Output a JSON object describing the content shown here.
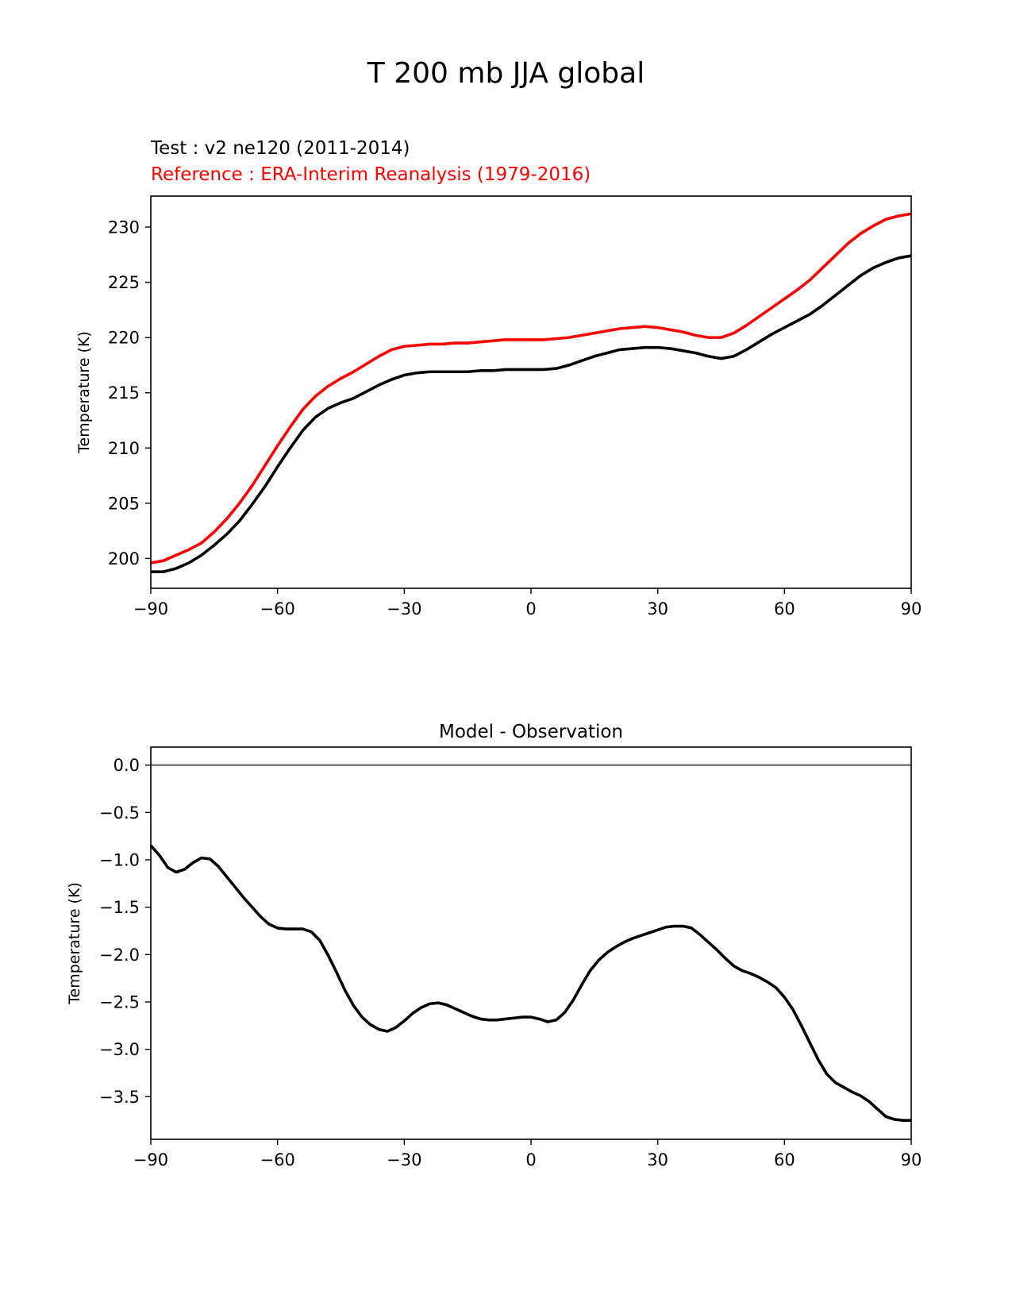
{
  "figure": {
    "title": "T 200 mb JJA global",
    "test_label": "Test : v2 ne120 (2011-2014)",
    "reference_label": "Reference : ERA-Interim Reanalysis (1979-2016)"
  },
  "colors": {
    "test": "#000000",
    "reference": "#ff0000",
    "zero_line": "#808080"
  },
  "chart_data": [
    {
      "type": "line",
      "title": "",
      "xlabel": "",
      "ylabel": "Temperature (K)",
      "xlim": [
        -90,
        90
      ],
      "ylim": [
        197.3,
        232.8
      ],
      "xticks": [
        -90,
        -60,
        -30,
        0,
        30,
        60,
        90
      ],
      "xtick_labels": [
        "−90",
        "−60",
        "−30",
        "0",
        "30",
        "60",
        "90"
      ],
      "yticks": [
        200,
        205,
        210,
        215,
        220,
        225,
        230
      ],
      "ytick_labels": [
        "200",
        "205",
        "210",
        "215",
        "220",
        "225",
        "230"
      ],
      "series": [
        {
          "name": "Test : v2 ne120 (2011-2014)",
          "color": "#000000",
          "x": [
            -90,
            -87,
            -84,
            -81,
            -78,
            -75,
            -72,
            -69,
            -66,
            -63,
            -60,
            -57,
            -54,
            -51,
            -48,
            -45,
            -42,
            -39,
            -36,
            -33,
            -30,
            -27,
            -24,
            -21,
            -18,
            -15,
            -12,
            -9,
            -6,
            -3,
            0,
            3,
            6,
            9,
            12,
            15,
            18,
            21,
            24,
            27,
            30,
            33,
            36,
            39,
            42,
            45,
            48,
            51,
            54,
            57,
            60,
            63,
            66,
            69,
            72,
            75,
            78,
            81,
            84,
            87,
            90
          ],
          "values": [
            198.8,
            198.8,
            199.1,
            199.6,
            200.3,
            201.2,
            202.2,
            203.4,
            204.9,
            206.5,
            208.3,
            210.0,
            211.6,
            212.8,
            213.6,
            214.1,
            214.5,
            215.1,
            215.7,
            216.2,
            216.6,
            216.8,
            216.9,
            216.9,
            216.9,
            216.9,
            217.0,
            217.0,
            217.1,
            217.1,
            217.1,
            217.1,
            217.2,
            217.5,
            217.9,
            218.3,
            218.6,
            218.9,
            219.0,
            219.1,
            219.1,
            219.0,
            218.8,
            218.6,
            218.3,
            218.1,
            218.3,
            218.9,
            219.6,
            220.3,
            220.9,
            221.5,
            222.1,
            222.9,
            223.8,
            224.7,
            225.6,
            226.3,
            226.8,
            227.2,
            227.4
          ]
        },
        {
          "name": "Reference : ERA-Interim Reanalysis (1979-2016)",
          "color": "#ff0000",
          "x": [
            -90,
            -87,
            -84,
            -81,
            -78,
            -75,
            -72,
            -69,
            -66,
            -63,
            -60,
            -57,
            -54,
            -51,
            -48,
            -45,
            -42,
            -39,
            -36,
            -33,
            -30,
            -27,
            -24,
            -21,
            -18,
            -15,
            -12,
            -9,
            -6,
            -3,
            0,
            3,
            6,
            9,
            12,
            15,
            18,
            21,
            24,
            27,
            30,
            33,
            36,
            39,
            42,
            45,
            48,
            51,
            54,
            57,
            60,
            63,
            66,
            69,
            72,
            75,
            78,
            81,
            84,
            87,
            90
          ],
          "values": [
            199.6,
            199.8,
            200.3,
            200.8,
            201.4,
            202.4,
            203.6,
            205.0,
            206.6,
            208.4,
            210.2,
            211.9,
            213.5,
            214.7,
            215.6,
            216.3,
            216.9,
            217.6,
            218.3,
            218.9,
            219.2,
            219.3,
            219.4,
            219.4,
            219.5,
            219.5,
            219.6,
            219.7,
            219.8,
            219.8,
            219.8,
            219.8,
            219.9,
            220.0,
            220.2,
            220.4,
            220.6,
            220.8,
            220.9,
            221.0,
            220.9,
            220.7,
            220.5,
            220.2,
            220.0,
            220.0,
            220.4,
            221.1,
            221.9,
            222.7,
            223.5,
            224.3,
            225.2,
            226.3,
            227.4,
            228.5,
            229.4,
            230.1,
            230.7,
            231.0,
            231.2
          ]
        }
      ]
    },
    {
      "type": "line",
      "title": "Model - Observation",
      "xlabel": "",
      "ylabel": "Temperature (K)",
      "xlim": [
        -90,
        90
      ],
      "ylim": [
        -3.95,
        0.19
      ],
      "xticks": [
        -90,
        -60,
        -30,
        0,
        30,
        60,
        90
      ],
      "xtick_labels": [
        "−90",
        "−60",
        "−30",
        "0",
        "30",
        "60",
        "90"
      ],
      "yticks": [
        0.0,
        -0.5,
        -1.0,
        -1.5,
        -2.0,
        -2.5,
        -3.0,
        -3.5
      ],
      "ytick_labels": [
        "0.0",
        "−0.5",
        "−1.0",
        "−1.5",
        "−2.0",
        "−2.5",
        "−3.0",
        "−3.5"
      ],
      "reference_line": {
        "y": 0.0,
        "color": "#808080"
      },
      "series": [
        {
          "name": "Model - Observation",
          "color": "#000000",
          "x": [
            -90,
            -88,
            -86,
            -84,
            -82,
            -80,
            -78,
            -76,
            -74,
            -72,
            -70,
            -68,
            -66,
            -64,
            -62,
            -60,
            -58,
            -56,
            -54,
            -52,
            -50,
            -48,
            -46,
            -44,
            -42,
            -40,
            -38,
            -36,
            -34,
            -32,
            -30,
            -28,
            -26,
            -24,
            -22,
            -20,
            -18,
            -16,
            -14,
            -12,
            -10,
            -8,
            -6,
            -4,
            -2,
            0,
            2,
            4,
            6,
            8,
            10,
            12,
            14,
            16,
            18,
            20,
            22,
            24,
            26,
            28,
            30,
            32,
            34,
            36,
            38,
            40,
            42,
            44,
            46,
            48,
            50,
            52,
            54,
            56,
            58,
            60,
            62,
            64,
            66,
            68,
            70,
            72,
            74,
            76,
            78,
            80,
            82,
            84,
            86,
            88,
            90
          ],
          "values": [
            -0.85,
            -0.95,
            -1.08,
            -1.13,
            -1.1,
            -1.03,
            -0.98,
            -0.99,
            -1.07,
            -1.18,
            -1.29,
            -1.4,
            -1.5,
            -1.6,
            -1.68,
            -1.72,
            -1.73,
            -1.73,
            -1.73,
            -1.76,
            -1.85,
            -2.01,
            -2.19,
            -2.38,
            -2.54,
            -2.66,
            -2.74,
            -2.79,
            -2.81,
            -2.77,
            -2.7,
            -2.62,
            -2.56,
            -2.52,
            -2.51,
            -2.53,
            -2.57,
            -2.61,
            -2.65,
            -2.68,
            -2.69,
            -2.69,
            -2.68,
            -2.67,
            -2.66,
            -2.66,
            -2.68,
            -2.71,
            -2.69,
            -2.61,
            -2.48,
            -2.32,
            -2.17,
            -2.06,
            -1.98,
            -1.92,
            -1.87,
            -1.83,
            -1.8,
            -1.77,
            -1.74,
            -1.71,
            -1.7,
            -1.7,
            -1.72,
            -1.79,
            -1.87,
            -1.95,
            -2.04,
            -2.12,
            -2.17,
            -2.2,
            -2.24,
            -2.29,
            -2.35,
            -2.45,
            -2.58,
            -2.75,
            -2.93,
            -3.11,
            -3.26,
            -3.35,
            -3.4,
            -3.45,
            -3.49,
            -3.55,
            -3.63,
            -3.71,
            -3.74,
            -3.75,
            -3.75
          ]
        }
      ]
    }
  ]
}
